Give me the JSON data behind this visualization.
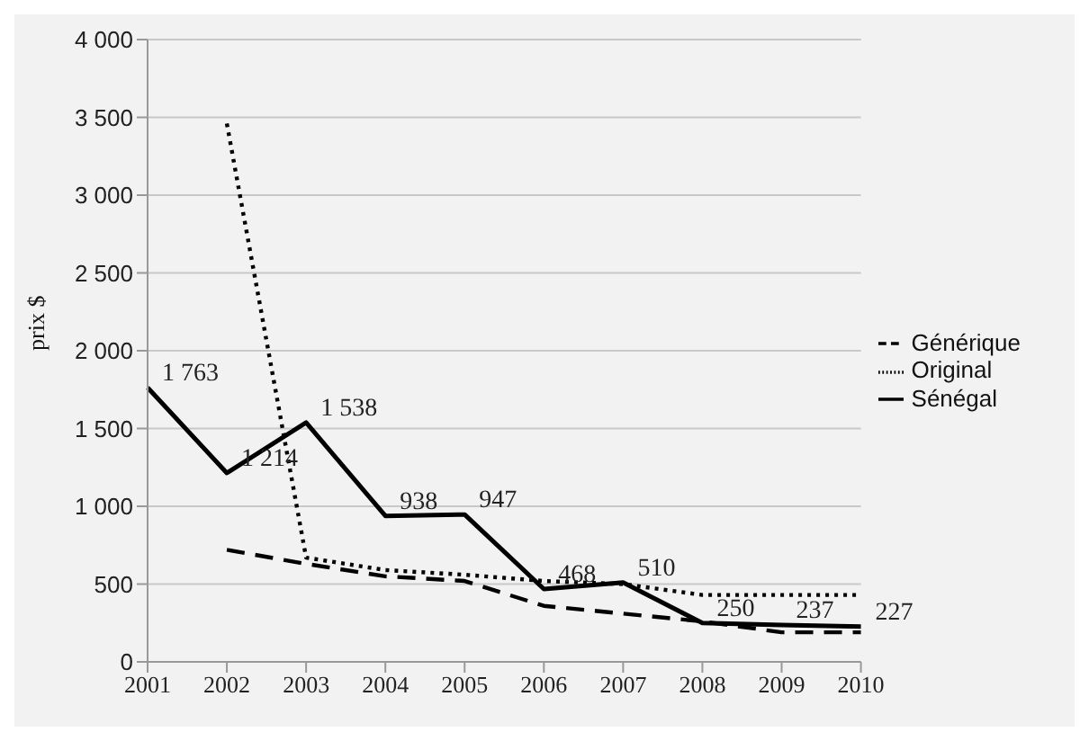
{
  "chart_data": {
    "type": "line",
    "ylabel": "prix $",
    "categories": [
      "2001",
      "2002",
      "2003",
      "2004",
      "2005",
      "2006",
      "2007",
      "2008",
      "2009",
      "2010"
    ],
    "series": [
      {
        "name": "Sénégal",
        "color": "#000000",
        "line_style": "solid",
        "values": [
          1763,
          1214,
          1538,
          938,
          947,
          468,
          510,
          250,
          237,
          227
        ],
        "value_labels": [
          "1 763",
          "1 214",
          "1 538",
          "938",
          "947",
          "468",
          "510",
          "250",
          "237",
          "227"
        ]
      },
      {
        "name": "Original",
        "color": "#000000",
        "line_style": "dotted",
        "values": [
          null,
          3460,
          670,
          590,
          560,
          520,
          500,
          430,
          430,
          430
        ]
      },
      {
        "name": "Générique",
        "color": "#000000",
        "line_style": "dashed",
        "values": [
          null,
          720,
          630,
          550,
          520,
          360,
          310,
          260,
          190,
          190
        ]
      }
    ],
    "ylim": [
      0,
      4000
    ],
    "yticks": [
      0,
      {
        "value": 500,
        "label": "500"
      },
      {
        "value": 1000,
        "label": "1 000"
      },
      {
        "value": 1500,
        "label": "1 500"
      },
      {
        "value": 2000,
        "label": "2 000"
      },
      {
        "value": 2500,
        "label": "2 500"
      },
      {
        "value": 3000,
        "label": "3 000"
      },
      {
        "value": 3500,
        "label": "3 500"
      },
      {
        "value": 4000,
        "label": "4 000"
      }
    ],
    "grid": "y",
    "legend": "right",
    "marker": "none"
  }
}
